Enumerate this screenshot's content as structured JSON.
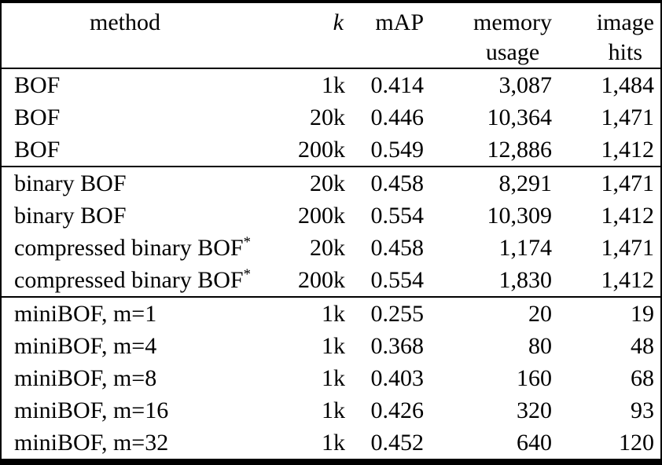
{
  "table": {
    "columns": {
      "method": {
        "label": "method"
      },
      "k": {
        "label": "k"
      },
      "map": {
        "label": "mAP"
      },
      "memory": {
        "label": "memory",
        "label_line2": "usage"
      },
      "hits": {
        "label": "image",
        "label_line2": "hits"
      }
    },
    "sections": [
      {
        "rows": [
          {
            "method": "BOF",
            "k": "1k",
            "map": "0.414",
            "memory": "3,087",
            "hits": "1,484"
          },
          {
            "method": "BOF",
            "k": "20k",
            "map": "0.446",
            "memory": "10,364",
            "hits": "1,471"
          },
          {
            "method": "BOF",
            "k": "200k",
            "map": "0.549",
            "memory": "12,886",
            "hits": "1,412"
          }
        ]
      },
      {
        "rows": [
          {
            "method": "binary BOF",
            "k": "20k",
            "map": "0.458",
            "memory": "8,291",
            "hits": "1,471"
          },
          {
            "method": "binary BOF",
            "k": "200k",
            "map": "0.554",
            "memory": "10,309",
            "hits": "1,412"
          },
          {
            "method": "compressed binary BOF",
            "method_sup": "*",
            "k": "20k",
            "map": "0.458",
            "memory": "1,174",
            "hits": "1,471"
          },
          {
            "method": "compressed binary BOF",
            "method_sup": "*",
            "k": "200k",
            "map": "0.554",
            "memory": "1,830",
            "hits": "1,412"
          }
        ]
      },
      {
        "rows": [
          {
            "method": "miniBOF, m=1",
            "k": "1k",
            "map": "0.255",
            "memory": "20",
            "hits": "19"
          },
          {
            "method": "miniBOF, m=4",
            "k": "1k",
            "map": "0.368",
            "memory": "80",
            "hits": "48"
          },
          {
            "method": "miniBOF, m=8",
            "k": "1k",
            "map": "0.403",
            "memory": "160",
            "hits": "68"
          },
          {
            "method": "miniBOF, m=16",
            "k": "1k",
            "map": "0.426",
            "memory": "320",
            "hits": "93"
          },
          {
            "method": "miniBOF, m=32",
            "k": "1k",
            "map": "0.452",
            "memory": "640",
            "hits": "120"
          }
        ]
      }
    ]
  },
  "colors": {
    "text": "#000000",
    "border": "#000000",
    "background": "#ffffff"
  }
}
